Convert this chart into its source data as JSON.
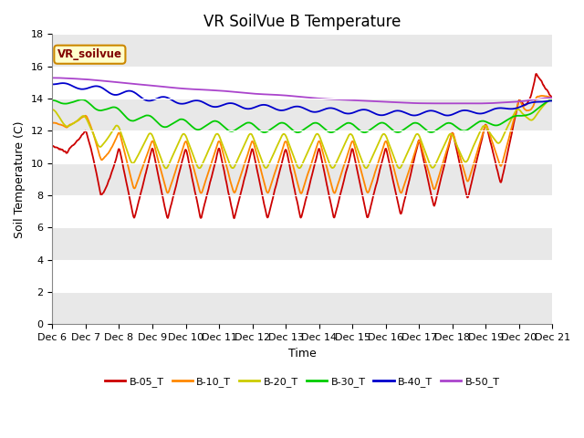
{
  "title": "VR SoilVue B Temperature",
  "xlabel": "Time",
  "ylabel": "Soil Temperature (C)",
  "ylim": [
    0,
    18
  ],
  "yticks": [
    0,
    2,
    4,
    6,
    8,
    10,
    12,
    14,
    16,
    18
  ],
  "xlim": [
    0,
    15
  ],
  "xtick_labels": [
    "Dec 6",
    "Dec 7",
    "Dec 8",
    "Dec 9",
    "Dec 10",
    "Dec 11",
    "Dec 12",
    "Dec 13",
    "Dec 14",
    "Dec 15",
    "Dec 16",
    "Dec 17",
    "Dec 18",
    "Dec 19",
    "Dec 20",
    "Dec 21"
  ],
  "legend_label": "VR_soilvue",
  "series_labels": [
    "B-05_T",
    "B-10_T",
    "B-20_T",
    "B-30_T",
    "B-40_T",
    "B-50_T"
  ],
  "series_colors": [
    "#cc0000",
    "#ff8800",
    "#cccc00",
    "#00cc00",
    "#0000cc",
    "#aa44cc"
  ],
  "background_color": "#ffffff",
  "plot_bg_color": "#ffffff",
  "band_color": "#e8e8e8",
  "title_fontsize": 12,
  "axis_label_fontsize": 9,
  "tick_fontsize": 8,
  "n_points": 1440,
  "days": 15
}
